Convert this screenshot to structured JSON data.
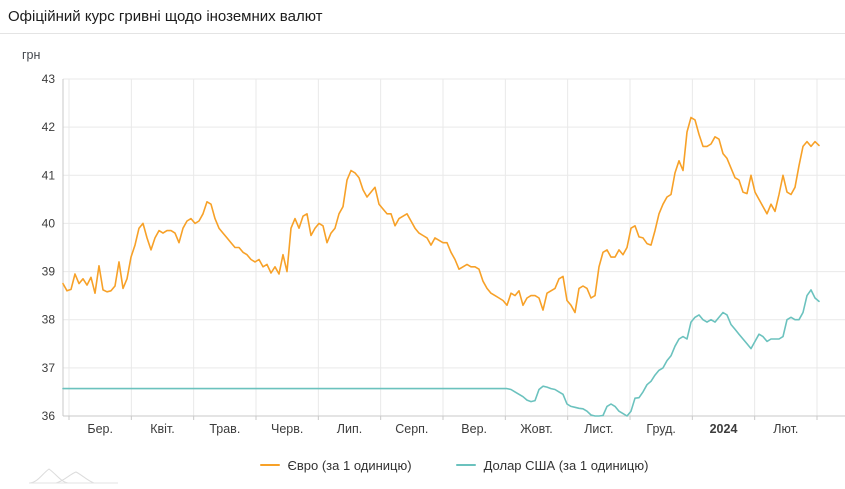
{
  "header": {
    "title": "Офіційний курс гривні щодо іноземних валют"
  },
  "chart_data": {
    "type": "line",
    "title": "Офіційний курс гривні щодо іноземних валют",
    "ylabel": "грн",
    "xlabel": "",
    "grid": true,
    "legend_position": "bottom",
    "y_min": 36,
    "y_max": 43,
    "y_tick_step": 1,
    "y_tick_labels": [
      "36",
      "37",
      "38",
      "39",
      "40",
      "41",
      "42",
      "43"
    ],
    "x_ticks": [
      {
        "label": "Бер.",
        "bold": false
      },
      {
        "label": "Квіт.",
        "bold": false
      },
      {
        "label": "Трав.",
        "bold": false
      },
      {
        "label": "Черв.",
        "bold": false
      },
      {
        "label": "Лип.",
        "bold": false
      },
      {
        "label": "Серп.",
        "bold": false
      },
      {
        "label": "Вер.",
        "bold": false
      },
      {
        "label": "Жовт.",
        "bold": false
      },
      {
        "label": "Лист.",
        "bold": false
      },
      {
        "label": "Груд.",
        "bold": false
      },
      {
        "label": "2024",
        "bold": true
      },
      {
        "label": "Лют.",
        "bold": false
      }
    ],
    "colors": {
      "grid": "#e9e9e9",
      "axis": "#c9c9c9",
      "tick_text": "#3c3c3c",
      "euro": "#f7a128",
      "usd": "#6bc2be"
    },
    "series": [
      {
        "id": "euro",
        "name": "Євро (за 1 одиницю)",
        "color": "#f7a128",
        "values": [
          38.75,
          38.6,
          38.63,
          38.95,
          38.75,
          38.85,
          38.72,
          38.88,
          38.55,
          39.12,
          38.62,
          38.58,
          38.6,
          38.7,
          39.2,
          38.65,
          38.85,
          39.3,
          39.55,
          39.9,
          40.0,
          39.7,
          39.45,
          39.7,
          39.85,
          39.8,
          39.85,
          39.85,
          39.8,
          39.6,
          39.9,
          40.05,
          40.1,
          40.0,
          40.05,
          40.2,
          40.45,
          40.4,
          40.1,
          39.9,
          39.8,
          39.7,
          39.6,
          39.5,
          39.5,
          39.4,
          39.35,
          39.25,
          39.2,
          39.25,
          39.1,
          39.15,
          38.97,
          39.1,
          38.95,
          39.35,
          39.0,
          39.9,
          40.1,
          39.9,
          40.15,
          40.2,
          39.75,
          39.9,
          40.0,
          39.95,
          39.6,
          39.8,
          39.9,
          40.2,
          40.35,
          40.9,
          41.1,
          41.05,
          40.95,
          40.7,
          40.55,
          40.65,
          40.75,
          40.4,
          40.3,
          40.2,
          40.2,
          39.95,
          40.1,
          40.15,
          40.2,
          40.05,
          39.9,
          39.8,
          39.75,
          39.7,
          39.55,
          39.7,
          39.65,
          39.6,
          39.6,
          39.4,
          39.25,
          39.05,
          39.1,
          39.15,
          39.1,
          39.1,
          39.05,
          38.8,
          38.65,
          38.55,
          38.5,
          38.45,
          38.4,
          38.3,
          38.55,
          38.5,
          38.6,
          38.3,
          38.45,
          38.5,
          38.5,
          38.45,
          38.2,
          38.55,
          38.6,
          38.65,
          38.85,
          38.9,
          38.4,
          38.3,
          38.15,
          38.65,
          38.7,
          38.65,
          38.45,
          38.5,
          39.1,
          39.4,
          39.45,
          39.3,
          39.3,
          39.45,
          39.35,
          39.5,
          39.9,
          39.95,
          39.72,
          39.7,
          39.58,
          39.55,
          39.85,
          40.2,
          40.4,
          40.55,
          40.6,
          41.05,
          41.3,
          41.1,
          41.9,
          42.2,
          42.15,
          41.85,
          41.6,
          41.6,
          41.65,
          41.8,
          41.75,
          41.45,
          41.35,
          41.15,
          40.95,
          40.9,
          40.65,
          40.62,
          41.0,
          40.65,
          40.5,
          40.35,
          40.2,
          40.4,
          40.25,
          40.6,
          41.0,
          40.65,
          40.6,
          40.75,
          41.2,
          41.6,
          41.7,
          41.6,
          41.7,
          41.62
        ]
      },
      {
        "id": "usd",
        "name": "Долар США (за 1 одиницю)",
        "color": "#6bc2be",
        "values": [
          36.57,
          36.57,
          36.57,
          36.57,
          36.57,
          36.57,
          36.57,
          36.57,
          36.57,
          36.57,
          36.57,
          36.57,
          36.57,
          36.57,
          36.57,
          36.57,
          36.57,
          36.57,
          36.57,
          36.57,
          36.57,
          36.57,
          36.57,
          36.57,
          36.57,
          36.57,
          36.57,
          36.57,
          36.57,
          36.57,
          36.57,
          36.57,
          36.57,
          36.57,
          36.57,
          36.57,
          36.57,
          36.57,
          36.57,
          36.57,
          36.57,
          36.57,
          36.57,
          36.57,
          36.57,
          36.57,
          36.57,
          36.57,
          36.57,
          36.57,
          36.57,
          36.57,
          36.57,
          36.57,
          36.57,
          36.57,
          36.57,
          36.57,
          36.57,
          36.57,
          36.57,
          36.57,
          36.57,
          36.57,
          36.57,
          36.57,
          36.57,
          36.57,
          36.57,
          36.57,
          36.57,
          36.57,
          36.57,
          36.57,
          36.57,
          36.57,
          36.57,
          36.57,
          36.57,
          36.57,
          36.57,
          36.57,
          36.57,
          36.57,
          36.57,
          36.57,
          36.57,
          36.57,
          36.57,
          36.57,
          36.57,
          36.57,
          36.57,
          36.57,
          36.57,
          36.57,
          36.57,
          36.57,
          36.57,
          36.57,
          36.57,
          36.57,
          36.57,
          36.57,
          36.57,
          36.57,
          36.57,
          36.57,
          36.57,
          36.57,
          36.57,
          36.57,
          36.55,
          36.5,
          36.45,
          36.4,
          36.33,
          36.3,
          36.32,
          36.55,
          36.62,
          36.6,
          36.57,
          36.55,
          36.5,
          36.45,
          36.25,
          36.2,
          36.18,
          36.16,
          36.15,
          36.1,
          36.02,
          36.0,
          36.0,
          36.01,
          36.2,
          36.25,
          36.2,
          36.1,
          36.05,
          36.0,
          36.1,
          36.37,
          36.38,
          36.5,
          36.65,
          36.72,
          36.85,
          36.95,
          37.0,
          37.15,
          37.25,
          37.45,
          37.6,
          37.65,
          37.6,
          37.95,
          38.05,
          38.1,
          38.0,
          37.95,
          38.0,
          37.95,
          38.05,
          38.15,
          38.1,
          37.9,
          37.8,
          37.7,
          37.6,
          37.5,
          37.4,
          37.55,
          37.7,
          37.65,
          37.55,
          37.6,
          37.6,
          37.6,
          37.65,
          38.0,
          38.05,
          38.0,
          38.0,
          38.15,
          38.5,
          38.62,
          38.45,
          38.38
        ]
      }
    ]
  }
}
